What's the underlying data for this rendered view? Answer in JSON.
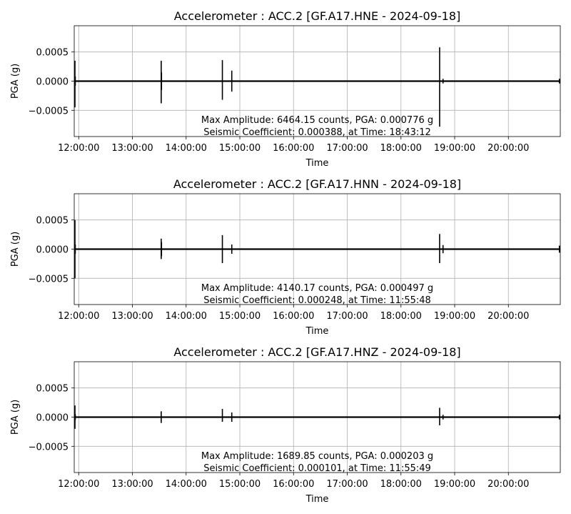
{
  "chart_data": [
    {
      "type": "line",
      "title": "Accelerometer : ACC.2  [GF.A17.HNE - 2024-09-18]",
      "xlabel": "Time",
      "ylabel": "PGA (g)",
      "xticks": [
        "12:00:00",
        "13:00:00",
        "14:00:00",
        "15:00:00",
        "16:00:00",
        "17:00:00",
        "18:00:00",
        "19:00:00",
        "20:00:00"
      ],
      "yticks": [
        "0.0005",
        "0.0000",
        "−0.0005"
      ],
      "xlim": [
        "11:55:00",
        "20:58:00"
      ],
      "ylim": [
        -0.00095,
        0.00095
      ],
      "grid": true,
      "annotation": [
        "Max Amplitude: 6464.15 counts, PGA: 0.000776 g",
        "Seismic Coefficient: 0.000388, at Time: 18:43:12"
      ],
      "series": [
        {
          "color": "#000000",
          "events": [
            {
              "time": "11:55:48",
              "min": -0.00045,
              "max": 0.00035
            },
            {
              "time": "11:56:10",
              "min": -8e-05,
              "max": 8e-05
            },
            {
              "time": "13:32:10",
              "min": -0.00038,
              "max": 0.00035
            },
            {
              "time": "13:32:30",
              "min": -0.00015,
              "max": 0.00015
            },
            {
              "time": "14:40:30",
              "min": -0.00032,
              "max": 0.00036
            },
            {
              "time": "14:51:00",
              "min": -0.00018,
              "max": 0.00018
            },
            {
              "time": "18:43:12",
              "min": -0.00078,
              "max": 0.00058
            },
            {
              "time": "18:47:00",
              "min": -4e-05,
              "max": 4e-05
            },
            {
              "time": "20:57:00",
              "min": -4e-05,
              "max": 4e-05
            }
          ]
        }
      ]
    },
    {
      "type": "line",
      "title": "Accelerometer : ACC.2  [GF.A17.HNN - 2024-09-18]",
      "xlabel": "Time",
      "ylabel": "PGA (g)",
      "xticks": [
        "12:00:00",
        "13:00:00",
        "14:00:00",
        "15:00:00",
        "16:00:00",
        "17:00:00",
        "18:00:00",
        "19:00:00",
        "20:00:00"
      ],
      "yticks": [
        "0.0005",
        "0.0000",
        "−0.0005"
      ],
      "xlim": [
        "11:55:00",
        "20:58:00"
      ],
      "ylim": [
        -0.00095,
        0.00095
      ],
      "grid": true,
      "annotation": [
        "Max Amplitude: 4140.17 counts, PGA: 0.000497 g",
        "Seismic Coefficient: 0.000248, at Time: 11:55:48"
      ],
      "series": [
        {
          "color": "#000000",
          "events": [
            {
              "time": "11:55:48",
              "min": -0.0005,
              "max": 0.0005
            },
            {
              "time": "11:56:10",
              "min": -8e-05,
              "max": 8e-05
            },
            {
              "time": "13:32:10",
              "min": -0.00017,
              "max": 0.00018
            },
            {
              "time": "13:32:30",
              "min": -0.00012,
              "max": 0.00012
            },
            {
              "time": "14:40:30",
              "min": -0.00024,
              "max": 0.00024
            },
            {
              "time": "14:51:00",
              "min": -8e-05,
              "max": 8e-05
            },
            {
              "time": "18:43:12",
              "min": -0.00024,
              "max": 0.00026
            },
            {
              "time": "18:47:00",
              "min": -7e-05,
              "max": 7e-05
            },
            {
              "time": "20:57:00",
              "min": -6e-05,
              "max": 6e-05
            }
          ]
        }
      ]
    },
    {
      "type": "line",
      "title": "Accelerometer : ACC.2  [GF.A17.HNZ - 2024-09-18]",
      "xlabel": "Time",
      "ylabel": "PGA (g)",
      "xticks": [
        "12:00:00",
        "13:00:00",
        "14:00:00",
        "15:00:00",
        "16:00:00",
        "17:00:00",
        "18:00:00",
        "19:00:00",
        "20:00:00"
      ],
      "yticks": [
        "0.0005",
        "0.0000",
        "−0.0005"
      ],
      "xlim": [
        "11:55:00",
        "20:58:00"
      ],
      "ylim": [
        -0.00095,
        0.00095
      ],
      "grid": true,
      "annotation": [
        "Max Amplitude: 1689.85 counts, PGA: 0.000203 g",
        "Seismic Coefficient: 0.000101, at Time: 11:55:49"
      ],
      "series": [
        {
          "color": "#000000",
          "events": [
            {
              "time": "11:55:49",
              "min": -0.0002,
              "max": 0.0002
            },
            {
              "time": "11:56:10",
              "min": -5e-05,
              "max": 5e-05
            },
            {
              "time": "13:32:10",
              "min": -0.0001,
              "max": 0.0001
            },
            {
              "time": "14:40:30",
              "min": -8e-05,
              "max": 0.00014
            },
            {
              "time": "14:51:00",
              "min": -8e-05,
              "max": 8e-05
            },
            {
              "time": "18:43:12",
              "min": -0.00014,
              "max": 0.00016
            },
            {
              "time": "18:47:00",
              "min": -4e-05,
              "max": 4e-05
            },
            {
              "time": "20:57:00",
              "min": -4e-05,
              "max": 4e-05
            }
          ]
        }
      ]
    }
  ]
}
